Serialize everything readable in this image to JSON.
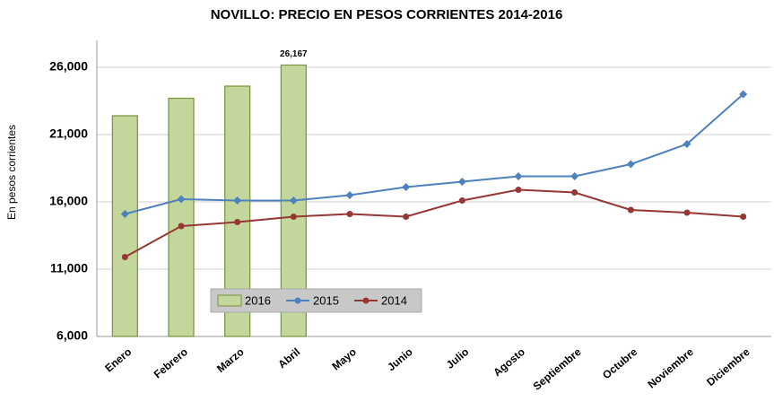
{
  "chart_data": {
    "type": "bar",
    "title": "NOVILLO: PRECIO EN PESOS CORRIENTES 2014-2016",
    "ylabel": "En pesos corrientes",
    "categories": [
      "Enero",
      "Febrero",
      "Marzo",
      "Abril",
      "Mayo",
      "Junio",
      "Julio",
      "Agosto",
      "Septiembre",
      "Octubre",
      "Noviembre",
      "Diciembre"
    ],
    "series": [
      {
        "name": "2016",
        "type": "bar",
        "color": "#c3d69b",
        "edge": "#77933c",
        "values": [
          22400,
          23700,
          24600,
          26167,
          null,
          null,
          null,
          null,
          null,
          null,
          null,
          null
        ],
        "value_labels": [
          null,
          null,
          null,
          "26,167",
          null,
          null,
          null,
          null,
          null,
          null,
          null,
          null
        ]
      },
      {
        "name": "2015",
        "type": "line",
        "color": "#4f81bd",
        "values": [
          15100,
          16200,
          16100,
          16100,
          16500,
          17100,
          17500,
          17900,
          17900,
          18800,
          20300,
          24000
        ]
      },
      {
        "name": "2014",
        "type": "line",
        "color": "#953735",
        "values": [
          11900,
          14200,
          14500,
          14900,
          15100,
          14900,
          16100,
          16900,
          16700,
          15400,
          15200,
          14900
        ]
      }
    ],
    "ylim": [
      6000,
      28000
    ],
    "yticks": [
      {
        "value": 6000,
        "label": "6,000"
      },
      {
        "value": 11000,
        "label": "11,000"
      },
      {
        "value": 16000,
        "label": "16,000"
      },
      {
        "value": 21000,
        "label": "21,000"
      },
      {
        "value": 26000,
        "label": "26,000"
      }
    ],
    "grid": true,
    "legend": "bottom-left"
  }
}
